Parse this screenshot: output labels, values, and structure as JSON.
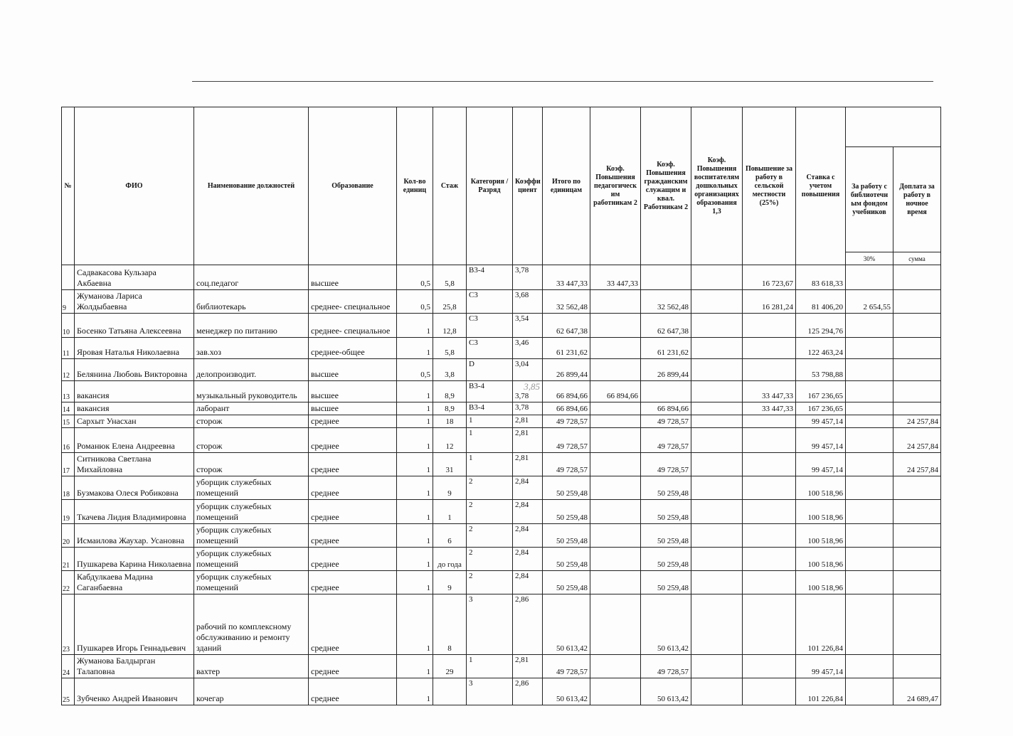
{
  "header": {
    "num": "№",
    "fio": "ФИО",
    "position": "Наименование должностей",
    "education": "Образование",
    "units": "Кол-во единиц",
    "stazh": "Стаж",
    "category": "Категория / Разряд",
    "coef": "Коэффи циент",
    "itogo": "Итого по единицам",
    "ped": "Коэф. Повышения педагогическ им работникам 2",
    "grazhd": "Коэф. Повышения гражданским служащим и квал. Работникам 2",
    "vosp": "Коэф. Повышения воспитателям дошкольных организациях образования 1,3",
    "selsk": "Повышение за работу в сельской местности (25%)",
    "stavka": "Ставка с учетом повышения",
    "lib": "За работу с библиотечн ым фондом учебников",
    "night": "Доплата за работу в ночное время",
    "lib_sub": "30%",
    "night_sub": "сумма"
  },
  "handwritten_note": "3,85",
  "rows": [
    [
      "",
      "Садвакасова Кульзара Акбаевна",
      "соц.педагог",
      "высшее",
      "0,5",
      "5,8",
      "В3-4",
      "3,78",
      "33 447,33",
      "33 447,33",
      "",
      "",
      "16 723,67",
      "83 618,33",
      "",
      ""
    ],
    [
      "9",
      "Жуманова Лариса Жолдыбаевна",
      "библиотекарь",
      "среднее- специальное",
      "0,5",
      "25,8",
      "С3",
      "3,68",
      "32 562,48",
      "",
      "32 562,48",
      "",
      "16 281,24",
      "81 406,20",
      "2 654,55",
      ""
    ],
    [
      "10",
      "Босенко Татьяна Алексеевна",
      "менеджер по питанию",
      "среднее- специальное",
      "1",
      "12,8",
      "С3",
      "3,54",
      "62 647,38",
      "",
      "62 647,38",
      "",
      "",
      "125 294,76",
      "",
      ""
    ],
    [
      "11",
      "Яровая Наталья Николаевна",
      "зав.хоз",
      "среднее-общее",
      "1",
      "5,8",
      "С3",
      "3,46",
      "61 231,62",
      "",
      "61 231,62",
      "",
      "",
      "122 463,24",
      "",
      ""
    ],
    [
      "12",
      "Белянина Любовь Викторовна",
      "делопроизводит.",
      "высшее",
      "0,5",
      "3,8",
      "D",
      "3,04",
      "26 899,44",
      "",
      "26 899,44",
      "",
      "",
      "53 798,88",
      "",
      ""
    ],
    [
      "13",
      "вакансия",
      "музыкальный руководитель",
      "высшее",
      "1",
      "8,9",
      "В3-4",
      "3,78",
      "66 894,66",
      "66 894,66",
      "",
      "",
      "33 447,33",
      "167 236,65",
      "",
      ""
    ],
    [
      "14",
      "вакансия",
      "лаборант",
      "высшее",
      "1",
      "8,9",
      "В3-4",
      "3,78",
      "66 894,66",
      "",
      "66 894,66",
      "",
      "33 447,33",
      "167 236,65",
      "",
      ""
    ],
    [
      "15",
      "Сархыт Унасхан",
      "сторож",
      "среднее",
      "1",
      "18",
      "1",
      "2,81",
      "49 728,57",
      "",
      "49 728,57",
      "",
      "",
      "99 457,14",
      "",
      "24 257,84"
    ],
    [
      "16",
      "Романюк Елена Андреевна",
      "сторож",
      "среднее",
      "1",
      "12",
      "1",
      "2,81",
      "49 728,57",
      "",
      "49 728,57",
      "",
      "",
      "99 457,14",
      "",
      "24 257,84"
    ],
    [
      "17",
      "Ситникова Светлана Михайловна",
      "сторож",
      "среднее",
      "1",
      "31",
      "1",
      "2,81",
      "49 728,57",
      "",
      "49 728,57",
      "",
      "",
      "99 457,14",
      "",
      "24 257,84"
    ],
    [
      "18",
      "Бузмакова Олеся Робиковна",
      "уборщик служебных помещений",
      "среднее",
      "1",
      "9",
      "2",
      "2,84",
      "50 259,48",
      "",
      "50 259,48",
      "",
      "",
      "100 518,96",
      "",
      ""
    ],
    [
      "19",
      "Ткачева Лидия Владимировна",
      "уборщик служебных помещений",
      "среднее",
      "1",
      "1",
      "2",
      "2,84",
      "50 259,48",
      "",
      "50 259,48",
      "",
      "",
      "100 518,96",
      "",
      ""
    ],
    [
      "20",
      "Исмаилова Жаухар. Усановна",
      "уборщик служебных помещений",
      "среднее",
      "1",
      "6",
      "2",
      "2,84",
      "50 259,48",
      "",
      "50 259,48",
      "",
      "",
      "100 518,96",
      "",
      ""
    ],
    [
      "21",
      "Пушкарева Карина Николаевна",
      "уборщик служебных помещений",
      "среднее",
      "1",
      "до года",
      "2",
      "2,84",
      "50 259,48",
      "",
      "50 259,48",
      "",
      "",
      "100 518,96",
      "",
      ""
    ],
    [
      "22",
      "Кабдулкаева Мадина Саганбаевна",
      "уборщик служебных помещений",
      "среднее",
      "1",
      "9",
      "2",
      "2,84",
      "50 259,48",
      "",
      "50 259,48",
      "",
      "",
      "100 518,96",
      "",
      ""
    ],
    [
      "23",
      "Пушкарев Игорь Геннадьевич",
      "рабочий по комплексному обслуживанию и ремонту зданий",
      "среднее",
      "1",
      "8",
      "3",
      "2,86",
      "50 613,42",
      "",
      "50 613,42",
      "",
      "",
      "101 226,84",
      "",
      ""
    ],
    [
      "24",
      "Жуманова Балдырган Талаповна",
      "вахтер",
      "среднее",
      "1",
      "29",
      "1",
      "2,81",
      "49 728,57",
      "",
      "49 728,57",
      "",
      "",
      "99 457,14",
      "",
      ""
    ],
    [
      "25",
      "Зубченко Андрей Иванович",
      "кочегар",
      "среднее",
      "1",
      "",
      "3",
      "2,86",
      "50 613,42",
      "",
      "50 613,42",
      "",
      "",
      "101 226,84",
      "",
      "24 689,47"
    ]
  ]
}
